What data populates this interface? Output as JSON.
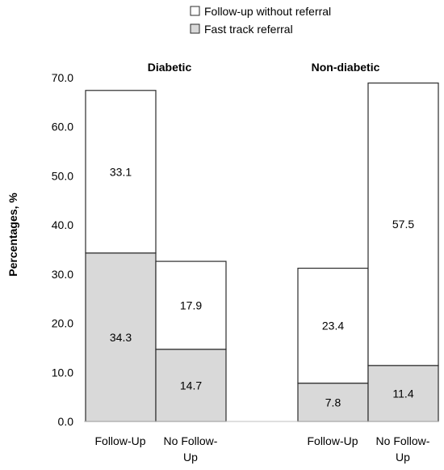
{
  "chart_data": {
    "type": "bar",
    "stacked": true,
    "ylabel": "Percentages, %",
    "ylim": [
      0,
      70
    ],
    "yticks": [
      "0.0",
      "10.0",
      "20.0",
      "30.0",
      "40.0",
      "50.0",
      "60.0",
      "70.0"
    ],
    "groups": [
      {
        "name": "Diabetic",
        "categories": [
          "Follow-Up",
          "No Follow-Up"
        ],
        "fast_track": [
          34.3,
          14.7
        ],
        "without_referral": [
          33.1,
          17.9
        ],
        "fast_track_labels": [
          "34.3",
          "14.7"
        ],
        "without_referral_labels": [
          "33.1",
          "17.9"
        ]
      },
      {
        "name": "Non-diabetic",
        "categories": [
          "Follow-Up",
          "No Follow-Up"
        ],
        "fast_track": [
          7.8,
          11.4
        ],
        "without_referral": [
          23.4,
          57.5
        ],
        "fast_track_labels": [
          "7.8",
          "11.4"
        ],
        "without_referral_labels": [
          "23.4",
          "57.5"
        ]
      }
    ],
    "legend": {
      "position": "top",
      "items": [
        {
          "label": "Follow-up without referral",
          "color": "#ffffff"
        },
        {
          "label": "Fast track referral",
          "color": "#d9d9d9"
        }
      ]
    },
    "colors": {
      "fast_track": "#d9d9d9",
      "without_referral": "#ffffff",
      "outline": "#2b2b2b",
      "axis": "#bfbfbf"
    }
  }
}
